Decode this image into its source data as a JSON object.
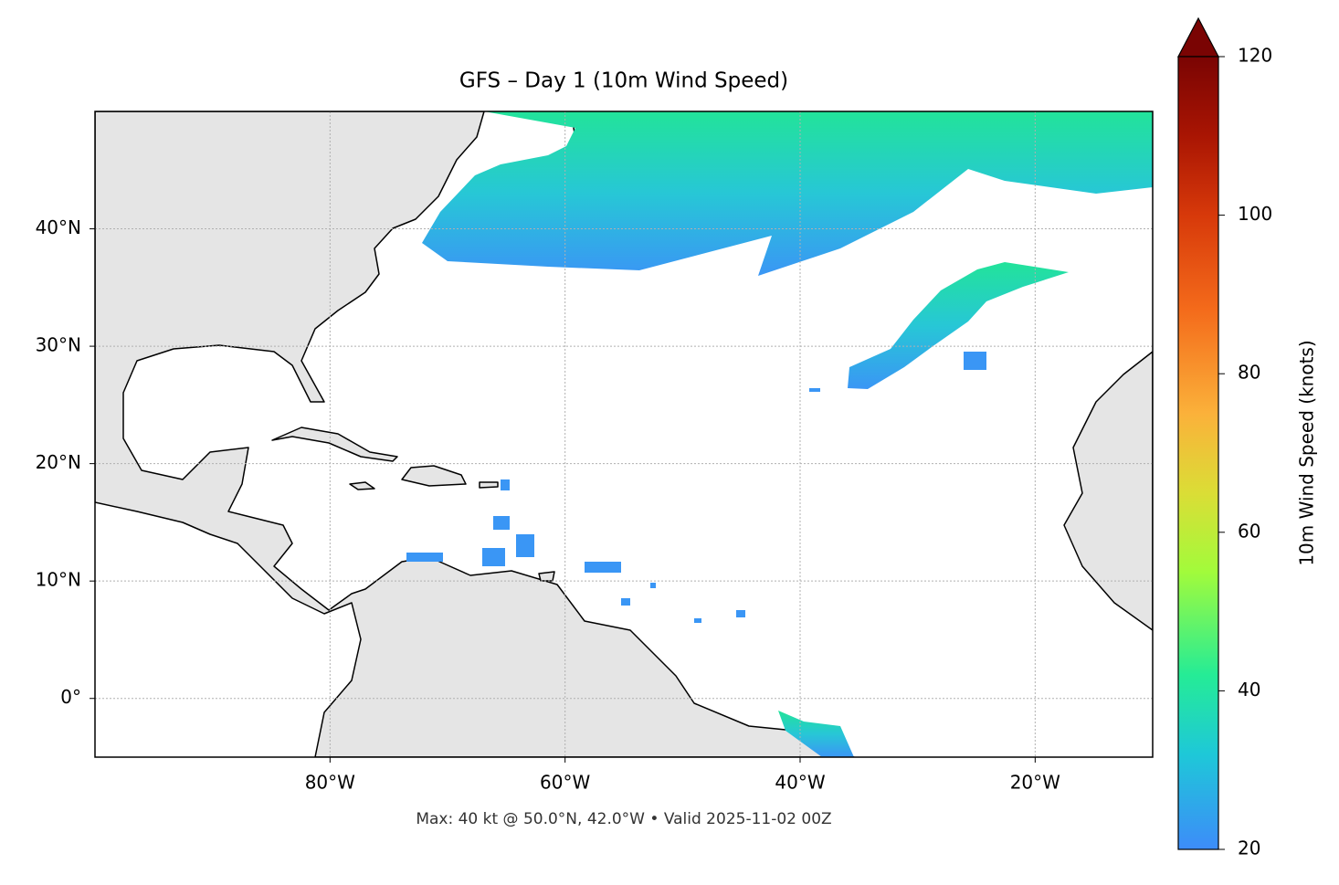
{
  "title": "GFS – Day 1 (10m Wind Speed)",
  "xlim": [
    -100,
    -10
  ],
  "ylim": [
    -5,
    50
  ],
  "xticks": [
    {
      "value": -80,
      "label": "80°W"
    },
    {
      "value": -60,
      "label": "60°W"
    },
    {
      "value": -40,
      "label": "40°W"
    },
    {
      "value": -20,
      "label": "20°W"
    }
  ],
  "yticks": [
    {
      "value": 0,
      "label": "0°"
    },
    {
      "value": 10,
      "label": "10°N"
    },
    {
      "value": 20,
      "label": "20°N"
    },
    {
      "value": 30,
      "label": "30°N"
    },
    {
      "value": 40,
      "label": "40°N"
    }
  ],
  "grid": true,
  "colorbar": {
    "label": "10m Wind Speed (knots)",
    "lim": [
      20,
      120
    ],
    "ticks": [
      20,
      40,
      60,
      80,
      100,
      120
    ]
  },
  "footer": "Max: 40 kt @ 50.0°N, 42.0°W • Valid 2025-11-02 00Z"
}
